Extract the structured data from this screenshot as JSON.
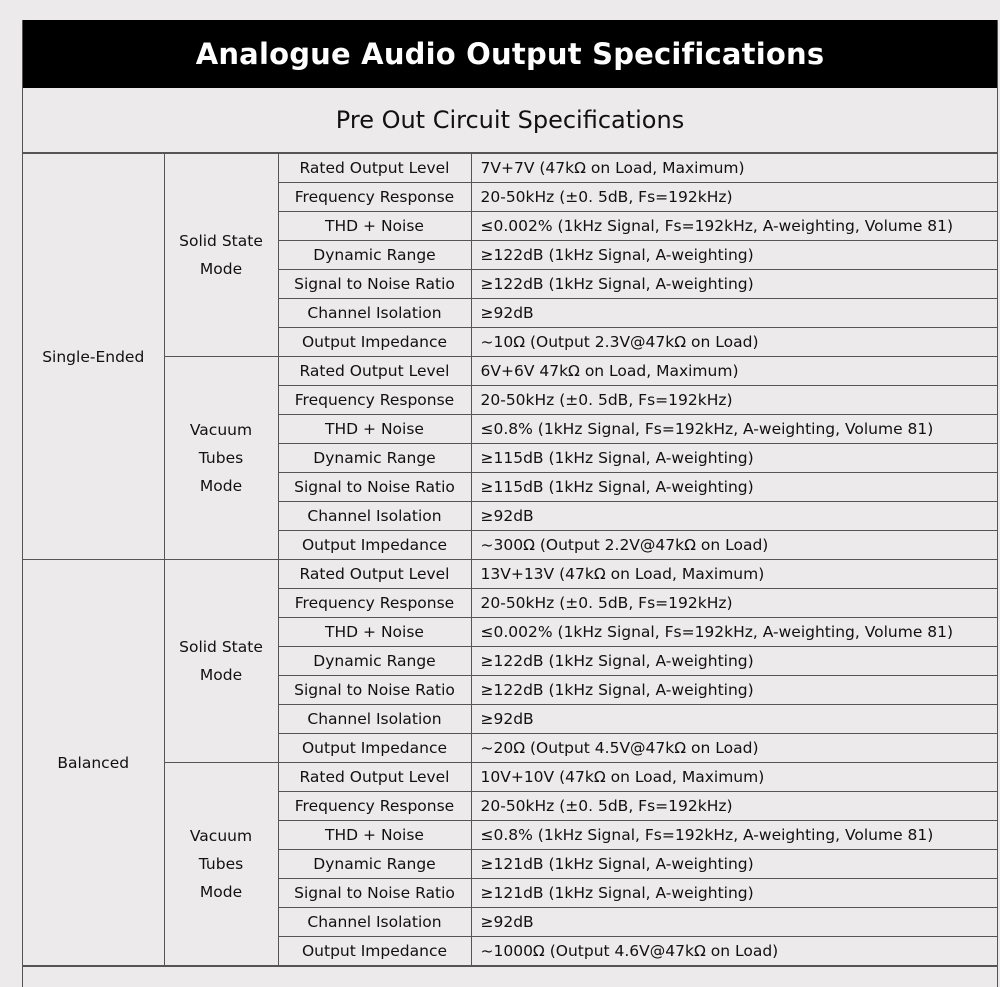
{
  "title": "Analogue Audio Output Specifications",
  "subtitle": "Pre Out Circuit Specifications",
  "groups": [
    {
      "output": "Single-Ended",
      "modes": [
        {
          "mode": "Solid State Mode",
          "specs": [
            {
              "param": "Rated Output Level",
              "value": "7V+7V (47kΩ on Load, Maximum)"
            },
            {
              "param": "Frequency Response",
              "value": "20-50kHz (±0. 5dB, Fs=192kHz)"
            },
            {
              "param": "THD + Noise",
              "value": "≤0.002% (1kHz Signal, Fs=192kHz, A-weighting, Volume 81)"
            },
            {
              "param": "Dynamic Range",
              "value": "≥122dB (1kHz Signal, A-weighting)"
            },
            {
              "param": "Signal to Noise Ratio",
              "value": "≥122dB (1kHz Signal, A-weighting)"
            },
            {
              "param": "Channel Isolation",
              "value": "≥92dB"
            },
            {
              "param": "Output Impedance",
              "value": "~10Ω (Output 2.3V@47kΩ on Load)"
            }
          ]
        },
        {
          "mode": "Vacuum Tubes Mode",
          "specs": [
            {
              "param": "Rated Output Level",
              "value": "6V+6V 47kΩ on Load, Maximum)"
            },
            {
              "param": "Frequency Response",
              "value": "20-50kHz (±0. 5dB, Fs=192kHz)"
            },
            {
              "param": "THD + Noise",
              "value": "≤0.8% (1kHz Signal, Fs=192kHz, A-weighting, Volume 81)"
            },
            {
              "param": "Dynamic Range",
              "value": "≥115dB (1kHz Signal, A-weighting)"
            },
            {
              "param": "Signal to Noise Ratio",
              "value": "≥115dB (1kHz Signal, A-weighting)"
            },
            {
              "param": "Channel Isolation",
              "value": "≥92dB"
            },
            {
              "param": "Output Impedance",
              "value": "~300Ω (Output 2.2V@47kΩ on Load)"
            }
          ]
        }
      ]
    },
    {
      "output": "Balanced",
      "modes": [
        {
          "mode": "Solid State Mode",
          "specs": [
            {
              "param": "Rated Output Level",
              "value": "13V+13V (47kΩ on Load, Maximum)"
            },
            {
              "param": "Frequency Response",
              "value": "20-50kHz (±0. 5dB, Fs=192kHz)"
            },
            {
              "param": "THD + Noise",
              "value": "≤0.002% (1kHz Signal, Fs=192kHz, A-weighting, Volume 81)"
            },
            {
              "param": "Dynamic Range",
              "value": "≥122dB (1kHz Signal, A-weighting)"
            },
            {
              "param": "Signal to Noise Ratio",
              "value": "≥122dB (1kHz Signal, A-weighting)"
            },
            {
              "param": "Channel Isolation",
              "value": "≥92dB"
            },
            {
              "param": "Output Impedance",
              "value": "~20Ω (Output 4.5V@47kΩ on Load)"
            }
          ]
        },
        {
          "mode": "Vacuum Tubes Mode",
          "specs": [
            {
              "param": "Rated Output Level",
              "value": "10V+10V (47kΩ on Load, Maximum)"
            },
            {
              "param": "Frequency Response",
              "value": "20-50kHz (±0. 5dB, Fs=192kHz)"
            },
            {
              "param": "THD + Noise",
              "value": "≤0.8% (1kHz Signal, Fs=192kHz, A-weighting, Volume 81)"
            },
            {
              "param": "Dynamic Range",
              "value": "≥121dB (1kHz Signal, A-weighting)"
            },
            {
              "param": "Signal to Noise Ratio",
              "value": "≥121dB (1kHz Signal, A-weighting)"
            },
            {
              "param": "Channel Isolation",
              "value": "≥92dB"
            },
            {
              "param": "Output Impedance",
              "value": "~1000Ω (Output 4.6V@47kΩ on Load)"
            }
          ]
        }
      ]
    }
  ]
}
